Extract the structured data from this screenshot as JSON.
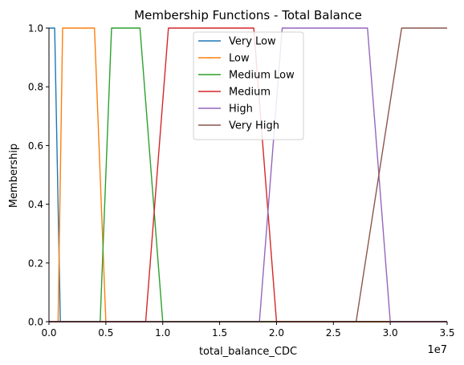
{
  "chart_data": {
    "type": "line",
    "title": "Membership Functions - Total Balance",
    "xlabel": "total_balance_CDC",
    "ylabel": "Membership",
    "x_offset_label": "1e7",
    "xlim": [
      0,
      35000000
    ],
    "ylim": [
      0,
      1.0
    ],
    "x_ticks": [
      0,
      5000000,
      10000000,
      15000000,
      20000000,
      25000000,
      30000000,
      35000000
    ],
    "x_tick_labels": [
      "0.0",
      "0.5",
      "1.0",
      "1.5",
      "2.0",
      "2.5",
      "3.0",
      "3.5"
    ],
    "y_ticks": [
      0.0,
      0.2,
      0.4,
      0.6,
      0.8,
      1.0
    ],
    "y_tick_labels": [
      "0.0",
      "0.2",
      "0.4",
      "0.6",
      "0.8",
      "1.0"
    ],
    "grid": false,
    "legend_position": "top-center",
    "series": [
      {
        "name": "Very Low",
        "color": "#1f77b4",
        "x": [
          0,
          500000,
          1000000,
          35000000
        ],
        "y": [
          1,
          1,
          0,
          0
        ]
      },
      {
        "name": "Low",
        "color": "#ff7f0e",
        "x": [
          0,
          800000,
          1200000,
          4000000,
          5000000,
          35000000
        ],
        "y": [
          0,
          0,
          1,
          1,
          0,
          0
        ]
      },
      {
        "name": "Medium Low",
        "color": "#2ca02c",
        "x": [
          0,
          4500000,
          5500000,
          8000000,
          10000000,
          35000000
        ],
        "y": [
          0,
          0,
          1,
          1,
          0,
          0
        ]
      },
      {
        "name": "Medium",
        "color": "#d62728",
        "x": [
          0,
          8500000,
          10500000,
          18000000,
          20000000,
          35000000
        ],
        "y": [
          0,
          0,
          1,
          1,
          0,
          0
        ]
      },
      {
        "name": "High",
        "color": "#9467bd",
        "x": [
          0,
          18500000,
          20500000,
          28000000,
          30000000,
          35000000
        ],
        "y": [
          0,
          0,
          1,
          1,
          0,
          0
        ]
      },
      {
        "name": "Very High",
        "color": "#8c564b",
        "x": [
          0,
          27000000,
          31000000,
          35000000
        ],
        "y": [
          0,
          0,
          1,
          1
        ]
      }
    ]
  }
}
